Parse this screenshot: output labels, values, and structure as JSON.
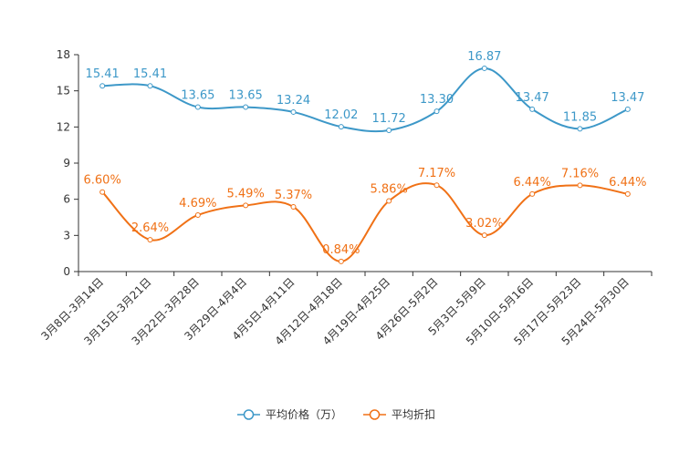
{
  "chart_data": {
    "type": "line",
    "categories": [
      "3月8日-3月14日",
      "3月15日-3月21日",
      "3月22日-3月28日",
      "3月29日-4月4日",
      "4月5日-4月11日",
      "4月12日-4月18日",
      "4月19日-4月25日",
      "4月26日-5月2日",
      "5月3日-5月9日",
      "5月10日-5月16日",
      "5月17日-5月23日",
      "5月24日-5月30日"
    ],
    "series": [
      {
        "name": "平均价格（万）",
        "color": "#3d98c8",
        "values": [
          15.41,
          15.41,
          13.65,
          13.65,
          13.24,
          12.02,
          11.72,
          13.3,
          16.87,
          13.47,
          11.85,
          13.47
        ],
        "labels": [
          "15.41",
          "15.41",
          "13.65",
          "13.65",
          "13.24",
          "12.02",
          "11.72",
          "13.30",
          "16.87",
          "13.47",
          "11.85",
          "13.47"
        ]
      },
      {
        "name": "平均折扣",
        "color": "#f07116",
        "values": [
          6.6,
          2.64,
          4.69,
          5.49,
          5.37,
          0.84,
          5.86,
          7.17,
          3.02,
          6.44,
          7.16,
          6.44
        ],
        "labels": [
          "6.60%",
          "2.64%",
          "4.69%",
          "5.49%",
          "5.37%",
          "0.84%",
          "5.86%",
          "7.17%",
          "3.02%",
          "6.44%",
          "7.16%",
          "6.44%"
        ]
      }
    ],
    "y_ticks": [
      "0",
      "3",
      "6",
      "9",
      "12",
      "15",
      "18"
    ],
    "y_tick_values": [
      0,
      3,
      6,
      9,
      12,
      15,
      18
    ],
    "ylim": [
      0,
      18
    ],
    "title": "",
    "xlabel": "",
    "ylabel": "",
    "grid": false,
    "legend_position": "bottom-center"
  }
}
